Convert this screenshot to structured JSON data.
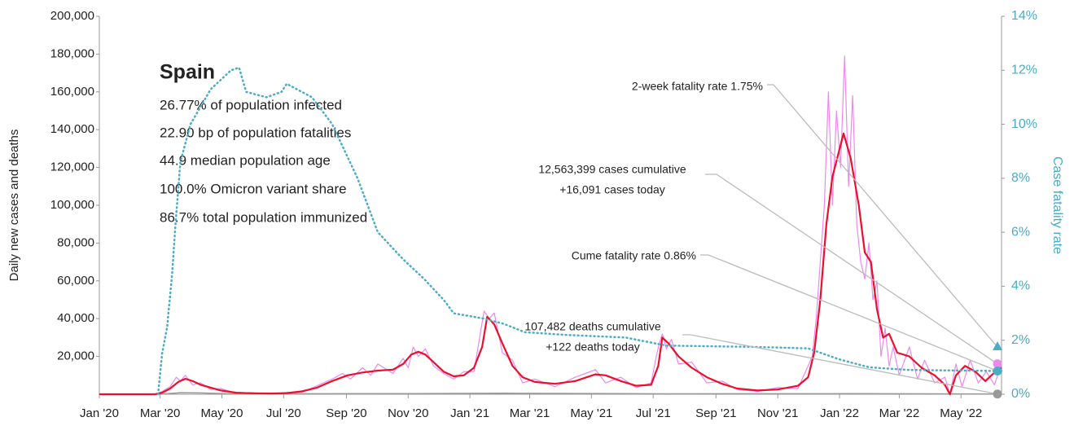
{
  "chart_data": {
    "type": "line",
    "title": "Spain",
    "subtitle_lines": [
      "26.77% of population infected",
      "22.90 bp of population fatalities",
      "44.9 median population age",
      "100.0% Omicron variant share",
      "86.7% total population immunized"
    ],
    "y_label": "Daily new cases and deaths",
    "y2_label": "Case fatality rate",
    "xlim": [
      0,
      891
    ],
    "xticks": [
      {
        "value": 0,
        "label": "Jan '20"
      },
      {
        "value": 60,
        "label": "Mar '20"
      },
      {
        "value": 121,
        "label": "May '20"
      },
      {
        "value": 182,
        "label": "Jul '20"
      },
      {
        "value": 244,
        "label": "Sep '20"
      },
      {
        "value": 305,
        "label": "Nov '20"
      },
      {
        "value": 366,
        "label": "Jan '21"
      },
      {
        "value": 425,
        "label": "Mar '21"
      },
      {
        "value": 486,
        "label": "May '21"
      },
      {
        "value": 547,
        "label": "Jul '21"
      },
      {
        "value": 609,
        "label": "Sep '21"
      },
      {
        "value": 670,
        "label": "Nov '21"
      },
      {
        "value": 731,
        "label": "Jan '22"
      },
      {
        "value": 790,
        "label": "Mar '22"
      },
      {
        "value": 851,
        "label": "May '22"
      }
    ],
    "ylim": [
      0,
      200000
    ],
    "yticks": [
      {
        "value": 20000,
        "label": "20,000"
      },
      {
        "value": 40000,
        "label": "40,000"
      },
      {
        "value": 60000,
        "label": "60,000"
      },
      {
        "value": 80000,
        "label": "80,000"
      },
      {
        "value": 100000,
        "label": "100,000"
      },
      {
        "value": 120000,
        "label": "120,000"
      },
      {
        "value": 140000,
        "label": "140,000"
      },
      {
        "value": 160000,
        "label": "160,000"
      },
      {
        "value": 180000,
        "label": "180,000"
      },
      {
        "value": 200000,
        "label": "200,000"
      }
    ],
    "y2lim": [
      0,
      14
    ],
    "y2ticks": [
      {
        "value": 0,
        "label": "0%"
      },
      {
        "value": 2,
        "label": "2%"
      },
      {
        "value": 4,
        "label": "4%"
      },
      {
        "value": 6,
        "label": "6%"
      },
      {
        "value": 8,
        "label": "8%"
      },
      {
        "value": 10,
        "label": "10%"
      },
      {
        "value": 12,
        "label": "12%"
      },
      {
        "value": 14,
        "label": "14%"
      }
    ],
    "series": [
      {
        "color": "#ee88ee",
        "width": 1.2,
        "dash": false,
        "axis": "y",
        "x": [
          0,
          55,
          62,
          70,
          76,
          80,
          85,
          92,
          100,
          110,
          120,
          135,
          150,
          170,
          185,
          200,
          215,
          230,
          240,
          248,
          260,
          268,
          275,
          290,
          300,
          305,
          310,
          315,
          322,
          330,
          340,
          350,
          360,
          370,
          375,
          380,
          385,
          390,
          398,
          408,
          418,
          430,
          450,
          470,
          480,
          490,
          500,
          515,
          530,
          545,
          550,
          553,
          556,
          560,
          565,
          572,
          585,
          600,
          615,
          630,
          650,
          670,
          690,
          700,
          704,
          708,
          712,
          716,
          720,
          724,
          728,
          732,
          736,
          740,
          744,
          748,
          752,
          756,
          760,
          764,
          768,
          772,
          776,
          780,
          784,
          790,
          800,
          808,
          815,
          825,
          835,
          840,
          846,
          852,
          860,
          868,
          876,
          884,
          891
        ],
        "values": [
          0,
          0,
          1500,
          4000,
          9000,
          7000,
          10000,
          5000,
          6000,
          2500,
          3000,
          500,
          900,
          200,
          900,
          1000,
          4500,
          8000,
          11000,
          8000,
          14000,
          10000,
          16000,
          11000,
          19000,
          14000,
          25000,
          20000,
          24000,
          15000,
          11000,
          8000,
          12000,
          12000,
          28000,
          44000,
          40000,
          43000,
          22000,
          18000,
          6000,
          8000,
          4000,
          9000,
          11000,
          13000,
          6000,
          9000,
          3500,
          6000,
          20000,
          27000,
          32000,
          24000,
          29000,
          16000,
          17000,
          6000,
          7000,
          2500,
          1500,
          3500,
          3000,
          15000,
          20000,
          40000,
          70000,
          100000,
          160000,
          100000,
          150000,
          120000,
          179000,
          110000,
          158000,
          90000,
          70000,
          61000,
          80000,
          50000,
          60000,
          20000,
          35000,
          15000,
          25000,
          10000,
          25000,
          8000,
          18000,
          6000,
          9000,
          0,
          16000,
          4000,
          18000,
          6000,
          12000,
          5000,
          16091
        ]
      },
      {
        "color": "#999999",
        "width": 1.5,
        "dash": false,
        "axis": "y",
        "x": [
          0,
          60,
          80,
          100,
          130,
          300,
          400,
          560,
          740,
          891
        ],
        "values": [
          0,
          0,
          800,
          700,
          200,
          300,
          500,
          200,
          300,
          122
        ]
      },
      {
        "color": "#e8112d",
        "width": 2.2,
        "dash": false,
        "axis": "y",
        "x": [
          0,
          55,
          62,
          70,
          78,
          85,
          92,
          100,
          110,
          120,
          135,
          150,
          170,
          185,
          200,
          215,
          230,
          245,
          260,
          275,
          290,
          300,
          308,
          315,
          322,
          330,
          340,
          350,
          360,
          370,
          378,
          383,
          390,
          398,
          408,
          418,
          430,
          450,
          470,
          490,
          500,
          515,
          530,
          545,
          552,
          556,
          562,
          572,
          585,
          600,
          615,
          630,
          650,
          670,
          690,
          700,
          706,
          712,
          718,
          724,
          735,
          742,
          750,
          756,
          762,
          768,
          774,
          780,
          788,
          800,
          812,
          825,
          835,
          840,
          846,
          855,
          865,
          875,
          883,
          891
        ],
        "values": [
          0,
          0,
          800,
          3000,
          6500,
          8200,
          7000,
          5000,
          3500,
          2000,
          800,
          500,
          400,
          600,
          1500,
          3500,
          7000,
          10000,
          11500,
          12500,
          13000,
          16000,
          21000,
          22500,
          21000,
          17000,
          12000,
          9500,
          10000,
          14000,
          25000,
          41000,
          37000,
          27000,
          15000,
          9000,
          6500,
          5500,
          7000,
          10500,
          10000,
          7000,
          4500,
          5000,
          15000,
          30000,
          27000,
          20000,
          14000,
          9000,
          5500,
          3000,
          2000,
          2500,
          4500,
          9000,
          22000,
          50000,
          90000,
          115000,
          138000,
          125000,
          100000,
          75000,
          70000,
          45000,
          30000,
          32000,
          22000,
          20000,
          14000,
          10000,
          5000,
          0,
          10000,
          15000,
          12000,
          7000,
          11000,
          14000
        ]
      },
      {
        "color": "#4bacc6",
        "width": 2.5,
        "dash": true,
        "axis": "y2",
        "x": [
          58,
          62,
          67,
          72,
          75,
          80,
          90,
          110,
          130,
          138,
          145,
          165,
          180,
          185,
          210,
          230,
          255,
          275,
          300,
          320,
          340,
          350,
          380,
          400,
          420,
          460,
          520,
          560,
          650,
          700,
          730,
          760,
          800,
          891
        ],
        "values": [
          0,
          1.5,
          2.5,
          4.5,
          6.2,
          8.6,
          10,
          11.3,
          12,
          12.1,
          11.2,
          11,
          11.2,
          11.5,
          11,
          10,
          8,
          6,
          5,
          4.3,
          3.5,
          3,
          2.8,
          2.6,
          2.3,
          2.2,
          2.1,
          1.8,
          1.75,
          1.7,
          1.3,
          1.0,
          0.9,
          0.86
        ]
      }
    ],
    "annotations": [
      {
        "lines": [
          "2-week fatality rate 1.75%"
        ],
        "value": 1.75,
        "axis": "y2",
        "color": "#4bacc6",
        "shape": "triangle"
      },
      {
        "lines": [
          "12,563,399 cases cumulative",
          "+16,091 cases today"
        ],
        "value": 16091,
        "axis": "y",
        "color": "#ee88ee",
        "shape": "circle"
      },
      {
        "lines": [
          "Cume fatality rate 0.86%"
        ],
        "value": 0.86,
        "axis": "y2",
        "color": "#4bacc6",
        "shape": "circle"
      },
      {
        "lines": [
          "107,482 deaths cumulative",
          "+122 deaths today"
        ],
        "value": 122,
        "axis": "y",
        "color": "#999999",
        "shape": "circle"
      }
    ]
  }
}
